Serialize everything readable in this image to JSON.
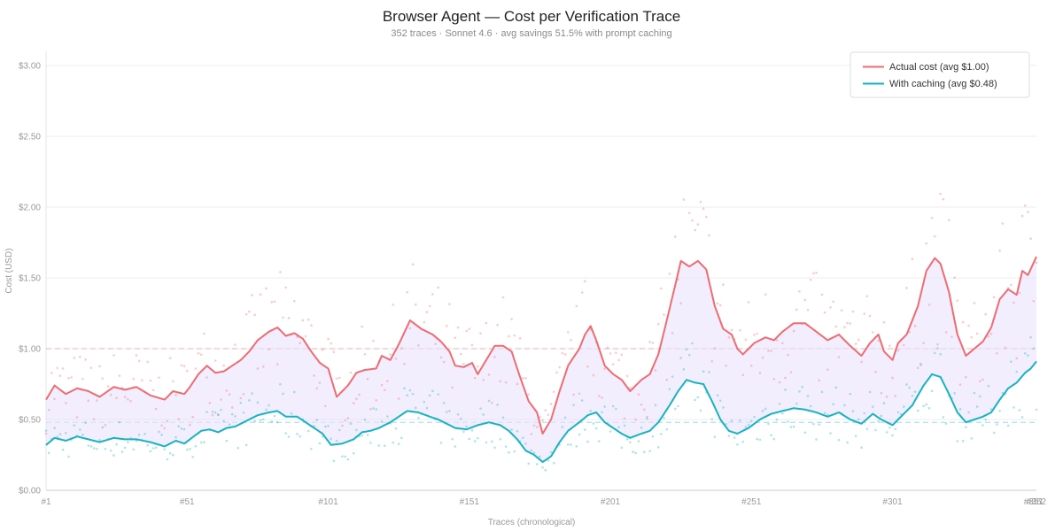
{
  "chart_data": {
    "type": "line",
    "title": "Browser Agent — Cost per Verification Trace",
    "subtitle": "352 traces · Sonnet 4.6 · avg savings 51.5% with prompt caching",
    "xlabel": "Traces (chronological)",
    "ylabel": "Cost (USD)",
    "x_range": [
      1,
      352
    ],
    "ylim": [
      0,
      3.1
    ],
    "x_ticks": [
      {
        "value": 1,
        "label": "#1"
      },
      {
        "value": 51,
        "label": "#51"
      },
      {
        "value": 101,
        "label": "#101"
      },
      {
        "value": 151,
        "label": "#151"
      },
      {
        "value": 201,
        "label": "#201"
      },
      {
        "value": 251,
        "label": "#251"
      },
      {
        "value": 301,
        "label": "#301"
      },
      {
        "value": 351,
        "label": "#351"
      },
      {
        "value": 352,
        "label": "#352"
      }
    ],
    "y_ticks": [
      {
        "value": 0,
        "label": "$0.00"
      },
      {
        "value": 0.5,
        "label": "$0.50"
      },
      {
        "value": 1.0,
        "label": "$1.00"
      },
      {
        "value": 1.5,
        "label": "$1.50"
      },
      {
        "value": 2.0,
        "label": "$2.00"
      },
      {
        "value": 2.5,
        "label": "$2.50"
      },
      {
        "value": 3.0,
        "label": "$3.00"
      }
    ],
    "grid": true,
    "legend_position": "top-right",
    "series": [
      {
        "name": "Actual cost (avg $1.00)",
        "color": "#f06b72",
        "average": 1.0,
        "keypoints": [
          [
            1,
            0.64
          ],
          [
            4,
            0.74
          ],
          [
            8,
            0.68
          ],
          [
            12,
            0.72
          ],
          [
            16,
            0.7
          ],
          [
            20,
            0.66
          ],
          [
            25,
            0.73
          ],
          [
            29,
            0.71
          ],
          [
            33,
            0.73
          ],
          [
            38,
            0.67
          ],
          [
            43,
            0.64
          ],
          [
            46,
            0.7
          ],
          [
            50,
            0.68
          ],
          [
            52,
            0.73
          ],
          [
            55,
            0.82
          ],
          [
            58,
            0.88
          ],
          [
            61,
            0.83
          ],
          [
            64,
            0.84
          ],
          [
            67,
            0.88
          ],
          [
            70,
            0.92
          ],
          [
            73,
            0.98
          ],
          [
            76,
            1.06
          ],
          [
            80,
            1.12
          ],
          [
            83,
            1.15
          ],
          [
            86,
            1.09
          ],
          [
            89,
            1.11
          ],
          [
            92,
            1.07
          ],
          [
            95,
            0.98
          ],
          [
            98,
            0.9
          ],
          [
            101,
            0.86
          ],
          [
            104,
            0.66
          ],
          [
            108,
            0.74
          ],
          [
            111,
            0.83
          ],
          [
            114,
            0.85
          ],
          [
            118,
            0.86
          ],
          [
            120,
            0.95
          ],
          [
            123,
            0.92
          ],
          [
            126,
            1.03
          ],
          [
            130,
            1.2
          ],
          [
            134,
            1.14
          ],
          [
            138,
            1.1
          ],
          [
            141,
            1.05
          ],
          [
            144,
            0.98
          ],
          [
            146,
            0.88
          ],
          [
            149,
            0.87
          ],
          [
            152,
            0.9
          ],
          [
            154,
            0.82
          ],
          [
            157,
            0.92
          ],
          [
            160,
            1.02
          ],
          [
            163,
            1.02
          ],
          [
            166,
            0.98
          ],
          [
            169,
            0.8
          ],
          [
            172,
            0.63
          ],
          [
            175,
            0.55
          ],
          [
            177,
            0.4
          ],
          [
            180,
            0.5
          ],
          [
            183,
            0.7
          ],
          [
            186,
            0.88
          ],
          [
            190,
            1.0
          ],
          [
            192,
            1.1
          ],
          [
            194,
            1.16
          ],
          [
            196,
            1.06
          ],
          [
            199,
            0.88
          ],
          [
            202,
            0.82
          ],
          [
            205,
            0.78
          ],
          [
            208,
            0.7
          ],
          [
            212,
            0.78
          ],
          [
            215,
            0.82
          ],
          [
            218,
            0.96
          ],
          [
            221,
            1.2
          ],
          [
            224,
            1.45
          ],
          [
            226,
            1.62
          ],
          [
            229,
            1.58
          ],
          [
            232,
            1.62
          ],
          [
            235,
            1.56
          ],
          [
            238,
            1.3
          ],
          [
            241,
            1.14
          ],
          [
            244,
            1.1
          ],
          [
            246,
            1.0
          ],
          [
            248,
            0.96
          ],
          [
            252,
            1.04
          ],
          [
            256,
            1.08
          ],
          [
            259,
            1.06
          ],
          [
            262,
            1.12
          ],
          [
            266,
            1.18
          ],
          [
            270,
            1.18
          ],
          [
            274,
            1.12
          ],
          [
            278,
            1.06
          ],
          [
            282,
            1.1
          ],
          [
            286,
            1.02
          ],
          [
            290,
            0.95
          ],
          [
            293,
            1.04
          ],
          [
            296,
            1.1
          ],
          [
            298,
            0.98
          ],
          [
            301,
            0.92
          ],
          [
            303,
            1.04
          ],
          [
            306,
            1.1
          ],
          [
            310,
            1.3
          ],
          [
            313,
            1.55
          ],
          [
            316,
            1.64
          ],
          [
            318,
            1.6
          ],
          [
            321,
            1.4
          ],
          [
            324,
            1.1
          ],
          [
            327,
            0.95
          ],
          [
            330,
            1.0
          ],
          [
            333,
            1.05
          ],
          [
            336,
            1.15
          ],
          [
            339,
            1.35
          ],
          [
            342,
            1.42
          ],
          [
            345,
            1.38
          ],
          [
            347,
            1.55
          ],
          [
            349,
            1.52
          ],
          [
            352,
            1.65
          ]
        ]
      },
      {
        "name": "With caching (avg $0.48)",
        "color": "#17b3c4",
        "average": 0.48,
        "keypoints": [
          [
            1,
            0.32
          ],
          [
            4,
            0.37
          ],
          [
            8,
            0.35
          ],
          [
            12,
            0.38
          ],
          [
            16,
            0.36
          ],
          [
            20,
            0.34
          ],
          [
            25,
            0.37
          ],
          [
            29,
            0.36
          ],
          [
            33,
            0.36
          ],
          [
            38,
            0.34
          ],
          [
            43,
            0.31
          ],
          [
            47,
            0.35
          ],
          [
            50,
            0.33
          ],
          [
            52,
            0.36
          ],
          [
            56,
            0.42
          ],
          [
            59,
            0.43
          ],
          [
            62,
            0.41
          ],
          [
            65,
            0.44
          ],
          [
            68,
            0.45
          ],
          [
            72,
            0.49
          ],
          [
            76,
            0.53
          ],
          [
            80,
            0.55
          ],
          [
            83,
            0.56
          ],
          [
            86,
            0.52
          ],
          [
            90,
            0.52
          ],
          [
            93,
            0.48
          ],
          [
            96,
            0.44
          ],
          [
            99,
            0.4
          ],
          [
            102,
            0.32
          ],
          [
            106,
            0.33
          ],
          [
            110,
            0.36
          ],
          [
            113,
            0.41
          ],
          [
            116,
            0.42
          ],
          [
            119,
            0.44
          ],
          [
            123,
            0.48
          ],
          [
            126,
            0.52
          ],
          [
            129,
            0.56
          ],
          [
            133,
            0.55
          ],
          [
            137,
            0.52
          ],
          [
            140,
            0.5
          ],
          [
            143,
            0.47
          ],
          [
            146,
            0.44
          ],
          [
            150,
            0.43
          ],
          [
            154,
            0.46
          ],
          [
            158,
            0.48
          ],
          [
            162,
            0.46
          ],
          [
            165,
            0.42
          ],
          [
            168,
            0.36
          ],
          [
            171,
            0.28
          ],
          [
            174,
            0.25
          ],
          [
            177,
            0.2
          ],
          [
            180,
            0.24
          ],
          [
            183,
            0.34
          ],
          [
            186,
            0.42
          ],
          [
            190,
            0.48
          ],
          [
            193,
            0.53
          ],
          [
            196,
            0.55
          ],
          [
            199,
            0.48
          ],
          [
            202,
            0.44
          ],
          [
            205,
            0.4
          ],
          [
            208,
            0.37
          ],
          [
            212,
            0.4
          ],
          [
            215,
            0.42
          ],
          [
            218,
            0.48
          ],
          [
            222,
            0.6
          ],
          [
            225,
            0.7
          ],
          [
            228,
            0.78
          ],
          [
            231,
            0.76
          ],
          [
            234,
            0.75
          ],
          [
            237,
            0.63
          ],
          [
            240,
            0.5
          ],
          [
            243,
            0.42
          ],
          [
            246,
            0.4
          ],
          [
            250,
            0.44
          ],
          [
            254,
            0.5
          ],
          [
            258,
            0.54
          ],
          [
            262,
            0.56
          ],
          [
            266,
            0.58
          ],
          [
            270,
            0.57
          ],
          [
            274,
            0.55
          ],
          [
            278,
            0.52
          ],
          [
            282,
            0.55
          ],
          [
            286,
            0.5
          ],
          [
            290,
            0.47
          ],
          [
            294,
            0.54
          ],
          [
            297,
            0.5
          ],
          [
            301,
            0.46
          ],
          [
            304,
            0.52
          ],
          [
            308,
            0.6
          ],
          [
            312,
            0.74
          ],
          [
            315,
            0.82
          ],
          [
            318,
            0.8
          ],
          [
            321,
            0.68
          ],
          [
            324,
            0.55
          ],
          [
            327,
            0.48
          ],
          [
            330,
            0.5
          ],
          [
            333,
            0.52
          ],
          [
            336,
            0.55
          ],
          [
            339,
            0.64
          ],
          [
            342,
            0.72
          ],
          [
            345,
            0.76
          ],
          [
            348,
            0.83
          ],
          [
            350,
            0.86
          ],
          [
            352,
            0.91
          ]
        ]
      }
    ]
  }
}
